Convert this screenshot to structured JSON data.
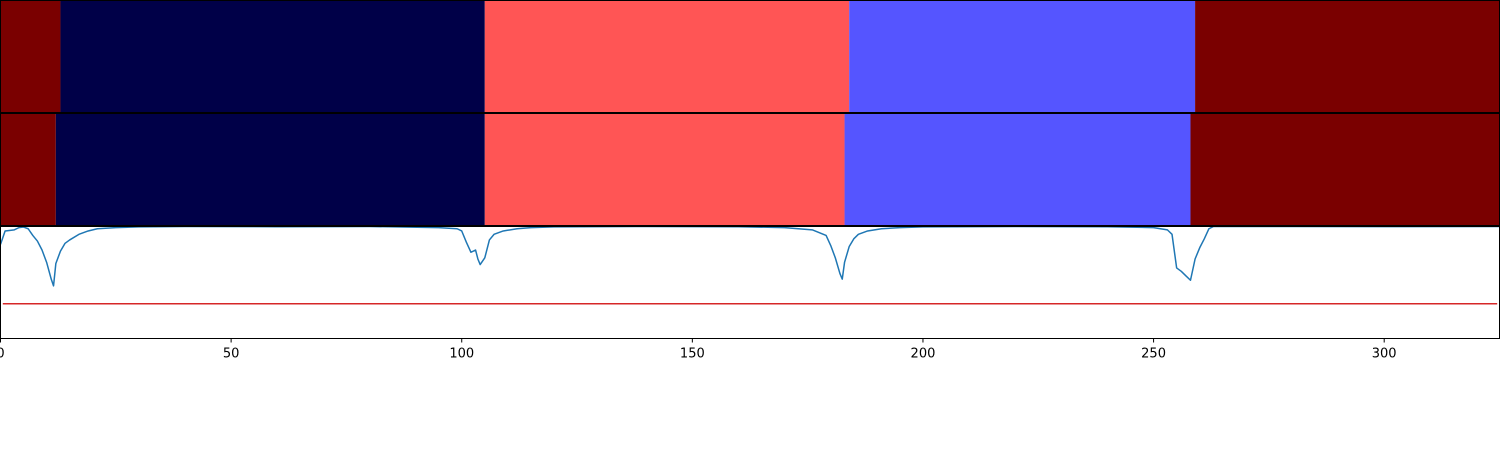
{
  "chart_data": [
    {
      "type": "segment-bar",
      "name": "upper-segmentation",
      "xlim": [
        0,
        325
      ],
      "segments": [
        {
          "start": 0,
          "end": 13,
          "color": "#7a0000"
        },
        {
          "start": 13,
          "end": 105,
          "color": "#000048"
        },
        {
          "start": 105,
          "end": 184,
          "color": "#ff5555"
        },
        {
          "start": 184,
          "end": 259,
          "color": "#5555ff"
        },
        {
          "start": 259,
          "end": 325,
          "color": "#7a0000"
        }
      ]
    },
    {
      "type": "segment-bar",
      "name": "lower-segmentation",
      "xlim": [
        0,
        325
      ],
      "segments": [
        {
          "start": 0,
          "end": 12,
          "color": "#7a0000"
        },
        {
          "start": 12,
          "end": 105,
          "color": "#000048"
        },
        {
          "start": 105,
          "end": 183,
          "color": "#ff5555"
        },
        {
          "start": 183,
          "end": 258,
          "color": "#5555ff"
        },
        {
          "start": 258,
          "end": 325,
          "color": "#7a0000"
        }
      ]
    },
    {
      "type": "line",
      "xlim": [
        0,
        325
      ],
      "ylim": [
        0,
        1
      ],
      "x_ticks": [
        0,
        50,
        100,
        150,
        200,
        250,
        300
      ],
      "x_tick_labels": [
        "0",
        "50",
        "100",
        "150",
        "200",
        "250",
        "300"
      ],
      "threshold": {
        "value": 0.31,
        "color": "#d62728"
      },
      "series": [
        {
          "color": "#1f77b4",
          "points": [
            [
              0,
              0.84
            ],
            [
              1,
              0.96
            ],
            [
              3,
              0.97
            ],
            [
              4,
              0.99
            ],
            [
              5,
              0.995
            ],
            [
              6,
              0.98
            ],
            [
              7,
              0.92
            ],
            [
              8,
              0.87
            ],
            [
              9,
              0.79
            ],
            [
              10,
              0.68
            ],
            [
              11,
              0.53
            ],
            [
              11.5,
              0.47
            ],
            [
              12,
              0.67
            ],
            [
              13,
              0.78
            ],
            [
              14,
              0.85
            ],
            [
              15,
              0.88
            ],
            [
              17,
              0.93
            ],
            [
              19,
              0.96
            ],
            [
              21,
              0.98
            ],
            [
              25,
              0.99
            ],
            [
              30,
              0.997
            ],
            [
              40,
              1.0
            ],
            [
              60,
              0.998
            ],
            [
              80,
              1.0
            ],
            [
              95,
              0.99
            ],
            [
              99,
              0.98
            ],
            [
              100,
              0.96
            ],
            [
              101,
              0.86
            ],
            [
              102,
              0.77
            ],
            [
              103,
              0.79
            ],
            [
              103.5,
              0.71
            ],
            [
              104,
              0.66
            ],
            [
              105,
              0.72
            ],
            [
              106,
              0.88
            ],
            [
              107,
              0.93
            ],
            [
              109,
              0.96
            ],
            [
              112,
              0.98
            ],
            [
              115,
              0.99
            ],
            [
              120,
              0.997
            ],
            [
              140,
              1.0
            ],
            [
              160,
              0.998
            ],
            [
              170,
              0.99
            ],
            [
              176,
              0.97
            ],
            [
              179,
              0.92
            ],
            [
              180,
              0.83
            ],
            [
              181,
              0.72
            ],
            [
              182,
              0.58
            ],
            [
              182.5,
              0.53
            ],
            [
              183,
              0.68
            ],
            [
              184,
              0.82
            ],
            [
              185,
              0.89
            ],
            [
              186,
              0.93
            ],
            [
              188,
              0.96
            ],
            [
              191,
              0.98
            ],
            [
              195,
              0.99
            ],
            [
              200,
              0.997
            ],
            [
              220,
              1.0
            ],
            [
              240,
              0.998
            ],
            [
              250,
              0.99
            ],
            [
              253,
              0.97
            ],
            [
              254,
              0.93
            ],
            [
              255,
              0.63
            ],
            [
              256,
              0.6
            ],
            [
              257,
              0.56
            ],
            [
              258,
              0.52
            ],
            [
              259,
              0.71
            ],
            [
              260,
              0.81
            ],
            [
              261,
              0.89
            ],
            [
              262,
              0.98
            ],
            [
              263,
              1.0
            ],
            [
              280,
              1.0
            ],
            [
              300,
              0.999
            ],
            [
              325,
              1.0
            ]
          ]
        }
      ]
    }
  ]
}
